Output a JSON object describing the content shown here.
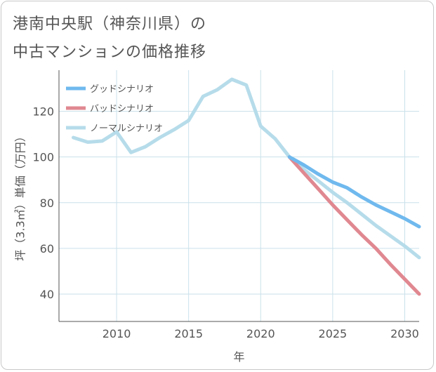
{
  "title_line1": "港南中央駅（神奈川県）の",
  "title_line2": "中古マンションの価格推移",
  "chart_data": {
    "type": "line",
    "title": "港南中央駅（神奈川県）の 中古マンションの価格推移",
    "xlabel": "年",
    "ylabel": "坪（3.3㎡）単価（万円）",
    "xlim": [
      2006,
      2031
    ],
    "ylim": [
      28,
      138
    ],
    "xticks": [
      2010,
      2015,
      2020,
      2025,
      2030
    ],
    "yticks": [
      40,
      60,
      80,
      100,
      120
    ],
    "grid": true,
    "legend_position": "top-left",
    "series": [
      {
        "name": "グッドシナリオ",
        "color": "#6fb9ee",
        "x": [
          2022,
          2023,
          2024,
          2025,
          2026,
          2027,
          2028,
          2029,
          2030,
          2031
        ],
        "y": [
          100,
          96.5,
          92.5,
          89,
          86.5,
          82.5,
          79,
          76,
          73,
          69.5
        ]
      },
      {
        "name": "バッドシナリオ",
        "color": "#e08890",
        "x": [
          2022,
          2023,
          2024,
          2025,
          2026,
          2027,
          2028,
          2029,
          2030,
          2031
        ],
        "y": [
          100,
          93,
          86,
          79,
          72.5,
          66,
          60,
          53,
          46.5,
          40
        ]
      },
      {
        "name": "ノーマルシナリオ",
        "color": "#b6dcea",
        "x": [
          2007,
          2008,
          2009,
          2010,
          2011,
          2012,
          2013,
          2014,
          2015,
          2016,
          2017,
          2018,
          2019,
          2020,
          2021,
          2022,
          2023,
          2024,
          2025,
          2026,
          2027,
          2028,
          2029,
          2030,
          2031
        ],
        "y": [
          108.5,
          106.5,
          107,
          111,
          102,
          104.5,
          108.5,
          112,
          116,
          126.5,
          129.5,
          134,
          131.5,
          113.5,
          108,
          100,
          94.5,
          89.5,
          84.5,
          80,
          75,
          70,
          65.5,
          61,
          56
        ]
      }
    ]
  }
}
